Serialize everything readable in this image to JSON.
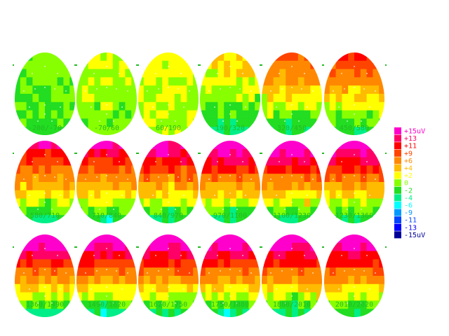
{
  "chart_data": {
    "type": "heatmap",
    "unit": "uV",
    "maps": [
      {
        "label": "-200/-70",
        "peak_uV": 0
      },
      {
        "label": "-70/60",
        "peak_uV": 1
      },
      {
        "label": "60/190",
        "peak_uV": 2
      },
      {
        "label": "190/320",
        "peak_uV": 4
      },
      {
        "label": "320/450",
        "peak_uV": 9
      },
      {
        "label": "450/580",
        "peak_uV": 11
      },
      {
        "label": "580/710",
        "peak_uV": 14
      },
      {
        "label": "710/840",
        "peak_uV": 15
      },
      {
        "label": "840/970",
        "peak_uV": 16
      },
      {
        "label": "970/1100",
        "peak_uV": 17
      },
      {
        "label": "1100/1230",
        "peak_uV": 18
      },
      {
        "label": "1230/1360",
        "peak_uV": 17
      },
      {
        "label": "1360/1490",
        "peak_uV": 18
      },
      {
        "label": "1490/1620",
        "peak_uV": 17
      },
      {
        "label": "1620/1750",
        "peak_uV": 17
      },
      {
        "label": "1750/1880",
        "peak_uV": 17
      },
      {
        "label": "1880/2010",
        "peak_uV": 18
      },
      {
        "label": "2010/2020",
        "peak_uV": 17
      }
    ],
    "legend": [
      {
        "label": "+15uV",
        "color": "#ff00cc"
      },
      {
        "label": "+13",
        "color": "#ff0066"
      },
      {
        "label": "+11",
        "color": "#ff0000"
      },
      {
        "label": "+9",
        "color": "#ff4400"
      },
      {
        "label": "+6",
        "color": "#ff8800"
      },
      {
        "label": "+4",
        "color": "#ffbb00"
      },
      {
        "label": "+2",
        "color": "#ffff00"
      },
      {
        "label": "0",
        "color": "#88ff00"
      },
      {
        "label": "-2",
        "color": "#22dd22"
      },
      {
        "label": "-4",
        "color": "#00ee88"
      },
      {
        "label": "-6",
        "color": "#00ffff"
      },
      {
        "label": "-9",
        "color": "#0099ff"
      },
      {
        "label": "-11",
        "color": "#0044ff"
      },
      {
        "label": "-13",
        "color": "#0000ff"
      },
      {
        "label": "-15uV",
        "color": "#000099"
      }
    ]
  }
}
